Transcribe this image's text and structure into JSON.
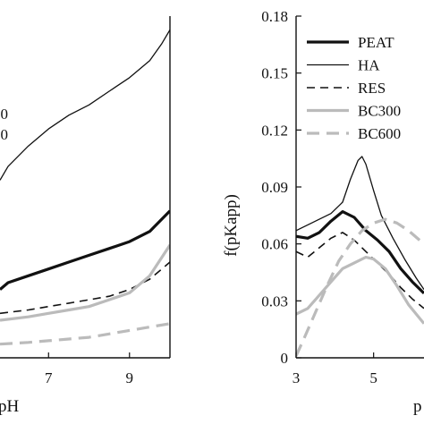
{
  "chart_data": [
    {
      "type": "line",
      "xlabel": "pH",
      "ylabel": "",
      "xlim": [
        5.8,
        10
      ],
      "ylim": [
        0,
        1
      ],
      "xticks": [
        7,
        9
      ],
      "legend_fragments": [
        "00",
        "00"
      ],
      "series": [
        {
          "name": "HA",
          "color": "#111111",
          "width": 1.3,
          "dash": "",
          "x": [
            5.8,
            6.0,
            6.5,
            7.0,
            7.5,
            8.0,
            8.5,
            9.0,
            9.5,
            9.8,
            10.0
          ],
          "y": [
            0.52,
            0.56,
            0.62,
            0.67,
            0.71,
            0.74,
            0.78,
            0.82,
            0.87,
            0.92,
            0.96
          ]
        },
        {
          "name": "PEAT",
          "color": "#111111",
          "width": 3.2,
          "dash": "",
          "x": [
            5.8,
            6.0,
            6.5,
            7.0,
            7.5,
            8.0,
            8.5,
            9.0,
            9.5,
            10.0
          ],
          "y": [
            0.2,
            0.22,
            0.24,
            0.26,
            0.28,
            0.3,
            0.32,
            0.34,
            0.37,
            0.43
          ]
        },
        {
          "name": "RES",
          "color": "#111111",
          "width": 1.6,
          "dash": "9,6",
          "x": [
            5.8,
            6.5,
            7.0,
            7.5,
            8.0,
            8.5,
            9.0,
            9.5,
            10.0
          ],
          "y": [
            0.13,
            0.14,
            0.15,
            0.16,
            0.17,
            0.18,
            0.2,
            0.23,
            0.28
          ]
        },
        {
          "name": "BC300",
          "color": "#bbbbbb",
          "width": 3.2,
          "dash": "",
          "x": [
            5.8,
            6.5,
            7.0,
            7.5,
            8.0,
            8.5,
            9.0,
            9.5,
            10.0
          ],
          "y": [
            0.11,
            0.12,
            0.13,
            0.14,
            0.15,
            0.17,
            0.19,
            0.24,
            0.33
          ]
        },
        {
          "name": "BC600",
          "color": "#bbbbbb",
          "width": 3.2,
          "dash": "14,8",
          "x": [
            5.8,
            6.5,
            7.0,
            7.5,
            8.0,
            8.5,
            9.0,
            9.5,
            10.0
          ],
          "y": [
            0.04,
            0.045,
            0.05,
            0.055,
            0.06,
            0.07,
            0.08,
            0.09,
            0.1
          ]
        }
      ]
    },
    {
      "type": "line",
      "xlabel": "p",
      "ylabel": "f(pKapp)",
      "xlim": [
        3,
        6.3
      ],
      "ylim": [
        0,
        0.18
      ],
      "xticks": [
        3,
        5
      ],
      "yticks": [
        "0",
        "0.03",
        "0.06",
        "0.09",
        "0.12",
        "0.15",
        "0.18"
      ],
      "legend_entries": [
        "PEAT",
        "HA",
        "RES",
        "BC300",
        "BC600"
      ],
      "series": [
        {
          "name": "PEAT",
          "color": "#111111",
          "width": 3.2,
          "dash": "",
          "x": [
            3.0,
            3.3,
            3.6,
            3.9,
            4.2,
            4.5,
            4.8,
            5.1,
            5.4,
            5.7,
            6.0,
            6.3
          ],
          "y": [
            0.064,
            0.063,
            0.066,
            0.072,
            0.077,
            0.074,
            0.067,
            0.062,
            0.056,
            0.047,
            0.04,
            0.034
          ]
        },
        {
          "name": "HA",
          "color": "#111111",
          "width": 1.3,
          "dash": "",
          "x": [
            3.0,
            3.3,
            3.6,
            3.9,
            4.2,
            4.4,
            4.6,
            4.7,
            4.8,
            5.0,
            5.2,
            5.5,
            5.8,
            6.1,
            6.3
          ],
          "y": [
            0.067,
            0.07,
            0.073,
            0.076,
            0.082,
            0.094,
            0.104,
            0.106,
            0.102,
            0.088,
            0.075,
            0.063,
            0.052,
            0.042,
            0.036
          ]
        },
        {
          "name": "RES",
          "color": "#111111",
          "width": 1.6,
          "dash": "9,6",
          "x": [
            3.0,
            3.3,
            3.6,
            3.9,
            4.2,
            4.5,
            4.8,
            5.1,
            5.4,
            5.7,
            6.0,
            6.3
          ],
          "y": [
            0.056,
            0.053,
            0.058,
            0.063,
            0.066,
            0.062,
            0.056,
            0.05,
            0.044,
            0.037,
            0.031,
            0.026
          ]
        },
        {
          "name": "BC300",
          "color": "#bbbbbb",
          "width": 3.2,
          "dash": "",
          "x": [
            3.0,
            3.3,
            3.6,
            3.9,
            4.2,
            4.5,
            4.8,
            5.0,
            5.3,
            5.6,
            5.9,
            6.3
          ],
          "y": [
            0.023,
            0.026,
            0.033,
            0.04,
            0.047,
            0.05,
            0.053,
            0.052,
            0.047,
            0.038,
            0.028,
            0.018
          ]
        },
        {
          "name": "BC600",
          "color": "#bbbbbb",
          "width": 3.2,
          "dash": "14,8",
          "x": [
            3.0,
            3.2,
            3.5,
            3.8,
            4.1,
            4.4,
            4.7,
            5.0,
            5.3,
            5.6,
            5.9,
            6.3
          ],
          "y": [
            0.001,
            0.01,
            0.024,
            0.038,
            0.051,
            0.06,
            0.067,
            0.071,
            0.073,
            0.071,
            0.067,
            0.06
          ]
        }
      ]
    }
  ]
}
